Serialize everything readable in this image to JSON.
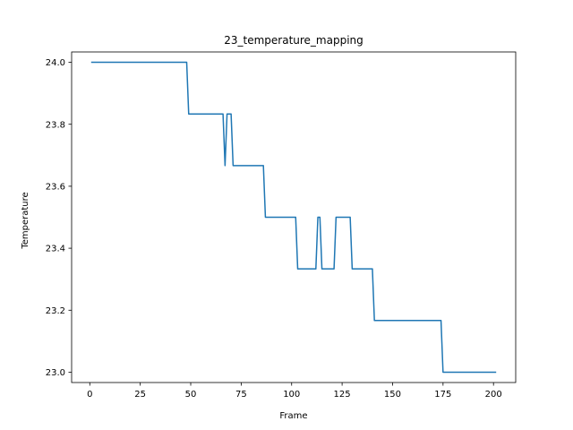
{
  "chart_data": {
    "type": "line",
    "title": "23_temperature_mapping",
    "xlabel": "Frame",
    "ylabel": "Temperature",
    "xlim": [
      -9,
      211
    ],
    "ylim": [
      22.9667,
      24.0333
    ],
    "xticks": [
      0,
      25,
      50,
      75,
      100,
      125,
      150,
      175,
      200
    ],
    "xtick_labels": [
      "0",
      "25",
      "50",
      "75",
      "100",
      "125",
      "150",
      "175",
      "200"
    ],
    "yticks": [
      23.0,
      23.2,
      23.4,
      23.6,
      23.8,
      24.0
    ],
    "ytick_labels": [
      "23.0",
      "23.2",
      "23.4",
      "23.6",
      "23.8",
      "24.0"
    ],
    "grid": false,
    "series": [
      {
        "color": "#1f77b4",
        "x": [
          1,
          48,
          49,
          66,
          67,
          68,
          70,
          71,
          86,
          87,
          102,
          103,
          112,
          113,
          114,
          115,
          121,
          122,
          129,
          130,
          140,
          141,
          174,
          175,
          201
        ],
        "y": [
          24.0,
          24.0,
          23.8333,
          23.8333,
          23.6667,
          23.8333,
          23.8333,
          23.6667,
          23.6667,
          23.5,
          23.5,
          23.3333,
          23.3333,
          23.5,
          23.5,
          23.3333,
          23.3333,
          23.5,
          23.5,
          23.3333,
          23.3333,
          23.1667,
          23.1667,
          23.0,
          23.0
        ]
      }
    ]
  }
}
